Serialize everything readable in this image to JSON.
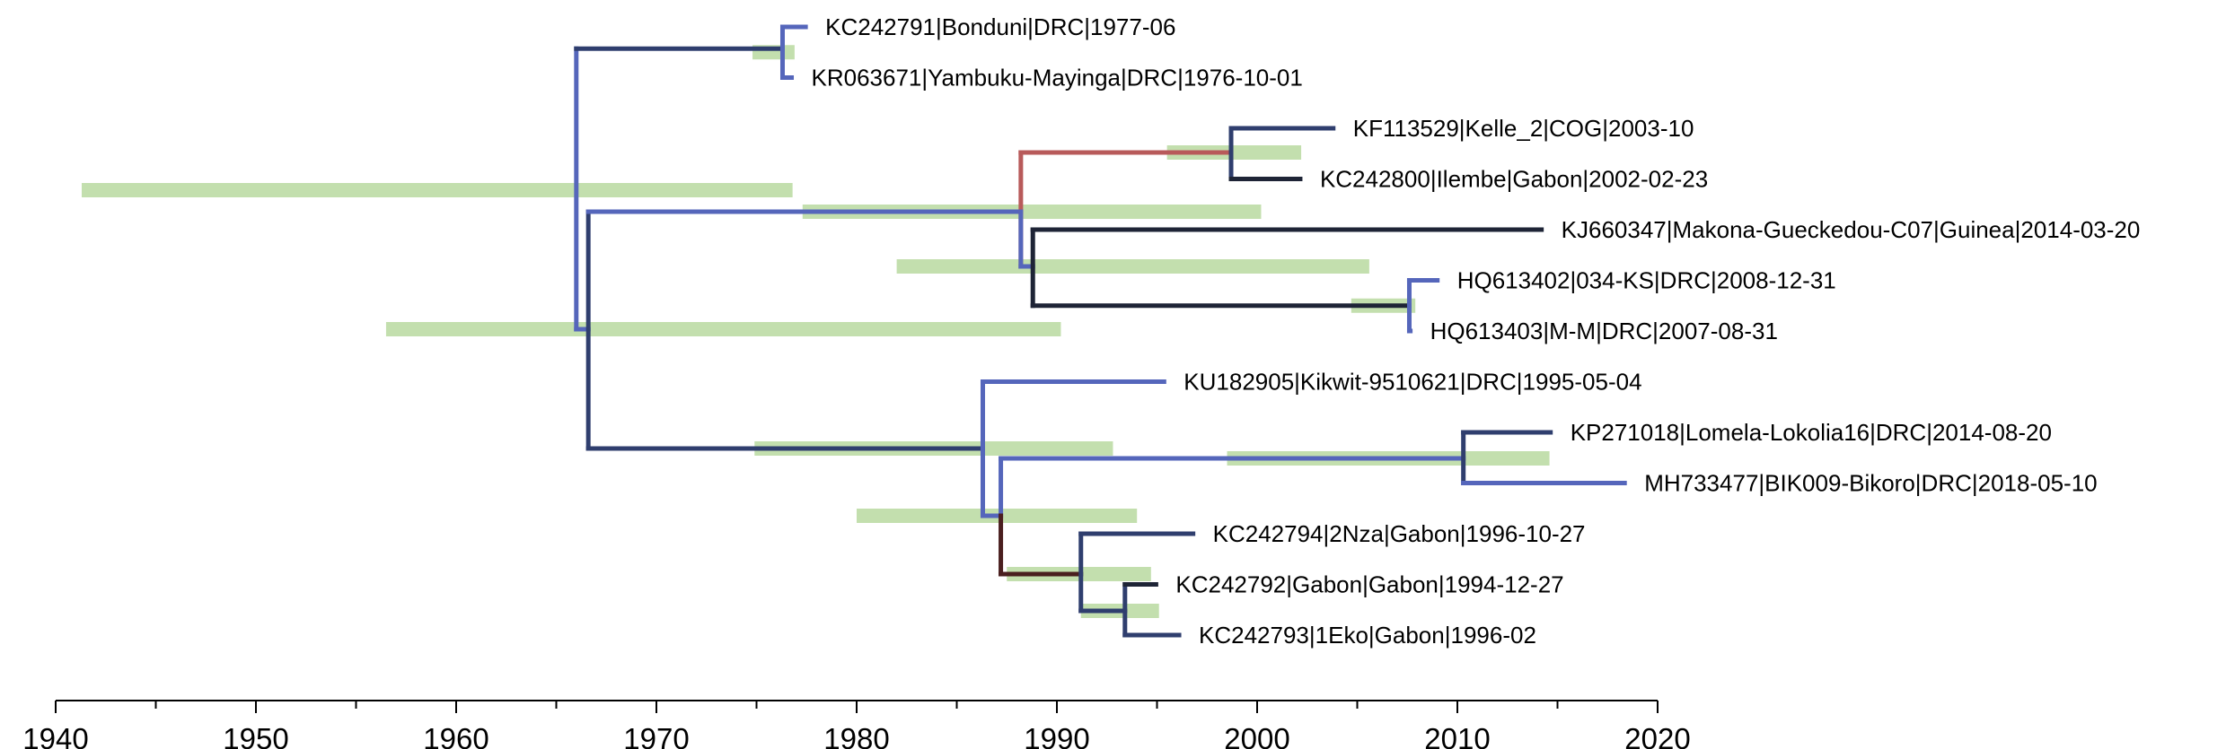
{
  "chart_data": {
    "type": "time-scaled phylogenetic tree",
    "x_axis": {
      "range": [
        1940,
        2020
      ],
      "major_ticks": [
        1940,
        1950,
        1960,
        1970,
        1980,
        1990,
        2000,
        2010,
        2020
      ],
      "minor_tick_step": 5
    },
    "leaves": [
      {
        "label": "KC242791|Bonduni|DRC|1977-06",
        "date": 1977.45,
        "color": "#5566bb"
      },
      {
        "label": "KR063671|Yambuku-Mayinga|DRC|1976-10-01",
        "date": 1976.75,
        "color": "#5566bb"
      },
      {
        "label": "KF113529|Kelle_2|COG|2003-10",
        "date": 2003.8,
        "color": "#2f3e6e"
      },
      {
        "label": "KC242800|Ilembe|Gabon|2002-02-23",
        "date": 2002.15,
        "color": "#1e2436"
      },
      {
        "label": "KJ660347|Makona-Gueckedou-C07|Guinea|2014-03-20",
        "date": 2014.2,
        "color": "#1e2436"
      },
      {
        "label": "HQ613402|034-KS|DRC|2008-12-31",
        "date": 2009.0,
        "color": "#5566bb"
      },
      {
        "label": "HQ613403|M-M|DRC|2007-08-31",
        "date": 2007.65,
        "color": "#5566bb"
      },
      {
        "label": "KU182905|Kikwit-9510621|DRC|1995-05-04",
        "date": 1995.35,
        "color": "#5566bb"
      },
      {
        "label": "KP271018|Lomela-Lokolia16|DRC|2014-08-20",
        "date": 2014.65,
        "color": "#2f3e6e"
      },
      {
        "label": "MH733477|BIK009-Bikoro|DRC|2018-05-10",
        "date": 2018.35,
        "color": "#5566bb"
      },
      {
        "label": "KC242794|2Nza|Gabon|1996-10-27",
        "date": 1996.8,
        "color": "#3a4a8c"
      },
      {
        "label": "KC242792|Gabon|Gabon|1994-12-27",
        "date": 1994.95,
        "color": "#1e2436"
      },
      {
        "label": "KC242793|1Eko|Gabon|1996-02",
        "date": 1996.1,
        "color": "#3a4a8c"
      }
    ],
    "internal_nodes": [
      {
        "id": "root",
        "time": 1966.0,
        "children": [
          "n_yambuku",
          "n_mid"
        ],
        "hpd": [
          1956.5,
          1990.2
        ]
      },
      {
        "id": "n_yambuku",
        "time": 1976.3,
        "children": [
          0,
          1
        ],
        "hpd": [
          1974.8,
          1976.9
        ]
      },
      {
        "id": "n_mid",
        "time": 1966.6,
        "children": [
          "n_west",
          "n_kikwit"
        ],
        "hpd": [
          1941.3,
          1976.8
        ]
      },
      {
        "id": "n_west",
        "time": 1988.2,
        "children": [
          "n_cog",
          "n_makona"
        ],
        "hpd": [
          1977.3,
          2000.2
        ]
      },
      {
        "id": "n_cog",
        "time": 1998.7,
        "children": [
          2,
          3
        ],
        "hpd": [
          1995.5,
          2002.2
        ]
      },
      {
        "id": "n_makona",
        "time": 1988.8,
        "children": [
          4,
          "n_ks"
        ],
        "hpd": [
          1982.0,
          2005.6
        ]
      },
      {
        "id": "n_ks",
        "time": 2007.6,
        "children": [
          5,
          6
        ],
        "hpd": [
          2004.7,
          2007.9
        ]
      },
      {
        "id": "n_kikwit",
        "time": 1986.3,
        "children": [
          7,
          "n_gab"
        ],
        "hpd": [
          1974.9,
          1992.8
        ]
      },
      {
        "id": "n_gab",
        "time": 1986.4,
        "children": [
          "n_lomela",
          "n_gabon"
        ],
        "hpd": [
          1980.0,
          1994.0
        ]
      },
      {
        "id": "n_lomela",
        "time": 1987.2,
        "children": [
          "n_kp",
          "n_gabon2"
        ],
        "hpd": null
      },
      {
        "id": "n_kp",
        "time": 2010.3,
        "children": [
          8,
          9
        ],
        "hpd": [
          1998.5,
          2014.6
        ]
      },
      {
        "id": "n_gabon",
        "time": 1987.2,
        "children": [
          "n_gabon2"
        ],
        "hpd": null
      },
      {
        "id": "n_gabon2",
        "time": 1991.2,
        "children": [
          10,
          "n_eko"
        ],
        "hpd": [
          1987.5,
          1994.7
        ]
      },
      {
        "id": "n_eko",
        "time": 1993.4,
        "children": [
          11,
          12
        ],
        "hpd": [
          1991.2,
          1995.1
        ]
      }
    ],
    "branch_colors": {
      "blue": "#5566bb",
      "navy": "#2f3e6e",
      "dark": "#1e2436",
      "red": "#b85a5a",
      "dark_red": "#4a1f1f",
      "hpd_bar": "#c3dfae"
    }
  }
}
